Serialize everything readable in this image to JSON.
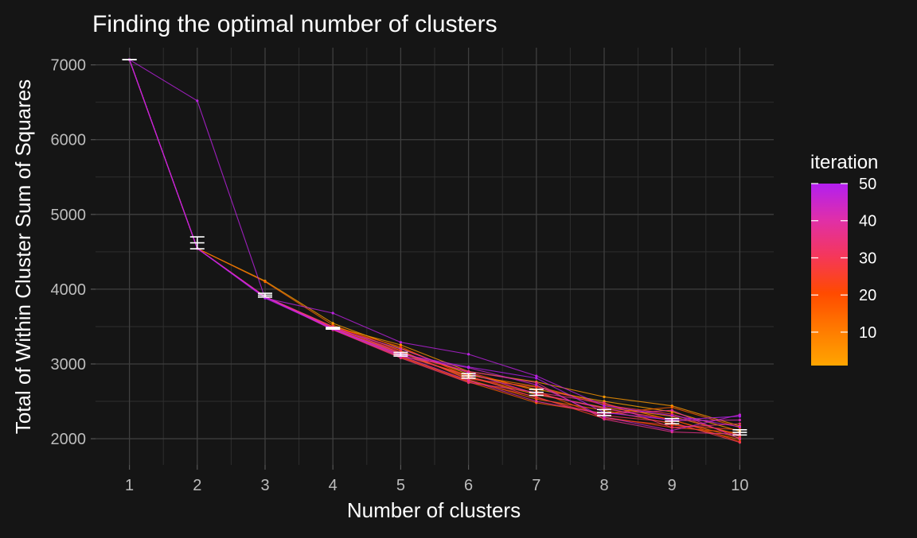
{
  "chart_data": {
    "type": "line",
    "title": "Finding the optimal number of clusters",
    "xlabel": "Number of clusters",
    "ylabel": "Total of Within Cluster Sum of Squares",
    "x": [
      1,
      2,
      3,
      4,
      5,
      6,
      7,
      8,
      9,
      10
    ],
    "xlim": [
      0.5,
      10.5
    ],
    "ylim": [
      1650,
      7230
    ],
    "x_ticks": [
      "1",
      "2",
      "3",
      "4",
      "5",
      "6",
      "7",
      "8",
      "9",
      "10"
    ],
    "y_ticks": [
      2000,
      3000,
      4000,
      5000,
      6000,
      7000
    ],
    "y_tick_labels": [
      "2000",
      "3000",
      "4000",
      "5000",
      "6000",
      "7000"
    ],
    "grid": true,
    "mean_with_error_bars": {
      "mean": [
        7070,
        4620,
        3920,
        3475,
        3130,
        2840,
        2620,
        2350,
        2235,
        2085
      ],
      "lower": [
        7070,
        4540,
        3895,
        3465,
        3105,
        2810,
        2580,
        2310,
        2200,
        2050
      ],
      "upper": [
        7070,
        4700,
        3945,
        3490,
        3155,
        2870,
        2660,
        2390,
        2270,
        2120
      ]
    },
    "series": [
      {
        "iteration": 1,
        "values": [
          7070,
          4545,
          4110,
          3545,
          3210,
          2860,
          2660,
          2500,
          2360,
          2100
        ]
      },
      {
        "iteration": 3,
        "values": [
          7070,
          4545,
          3900,
          3500,
          3255,
          2900,
          2760,
          2560,
          2440,
          2170
        ]
      },
      {
        "iteration": 6,
        "values": [
          7070,
          4545,
          3900,
          3470,
          3150,
          2820,
          2590,
          2420,
          2300,
          2050
        ]
      },
      {
        "iteration": 9,
        "values": [
          7070,
          4545,
          3900,
          3480,
          3120,
          2850,
          2700,
          2470,
          2250,
          2010
        ]
      },
      {
        "iteration": 12,
        "values": [
          7070,
          4545,
          4100,
          3520,
          3180,
          2790,
          2530,
          2380,
          2200,
          1990
        ]
      },
      {
        "iteration": 15,
        "values": [
          7070,
          4545,
          3900,
          3460,
          3100,
          2760,
          2480,
          2340,
          2420,
          2150
        ]
      },
      {
        "iteration": 18,
        "values": [
          7070,
          4545,
          3900,
          3470,
          3140,
          2890,
          2640,
          2290,
          2150,
          2080
        ]
      },
      {
        "iteration": 21,
        "values": [
          7070,
          4545,
          3900,
          3490,
          3230,
          2830,
          2610,
          2400,
          2260,
          1960
        ]
      },
      {
        "iteration": 24,
        "values": [
          7070,
          4545,
          3900,
          3455,
          3090,
          2770,
          2560,
          2270,
          2180,
          2120
        ]
      },
      {
        "iteration": 27,
        "values": [
          7070,
          4545,
          3900,
          3480,
          3170,
          2800,
          2690,
          2450,
          2330,
          2030
        ]
      },
      {
        "iteration": 30,
        "values": [
          7070,
          4545,
          3900,
          3470,
          3120,
          2840,
          2550,
          2310,
          2220,
          1950
        ]
      },
      {
        "iteration": 33,
        "values": [
          7070,
          4545,
          3900,
          3460,
          3080,
          2750,
          2620,
          2480,
          2150,
          2200
        ]
      },
      {
        "iteration": 36,
        "values": [
          7070,
          4545,
          3900,
          3500,
          3150,
          2900,
          2750,
          2260,
          2090,
          2060
        ]
      },
      {
        "iteration": 39,
        "values": [
          7070,
          4545,
          3900,
          3470,
          3110,
          2780,
          2500,
          2330,
          2380,
          2000
        ]
      },
      {
        "iteration": 42,
        "values": [
          7070,
          4545,
          3900,
          3480,
          3200,
          2880,
          2600,
          2410,
          2240,
          2250
        ]
      },
      {
        "iteration": 45,
        "values": [
          7070,
          4545,
          3890,
          3460,
          3100,
          2950,
          2720,
          2290,
          2110,
          2320
        ]
      },
      {
        "iteration": 48,
        "values": [
          7070,
          6520,
          3880,
          3680,
          3290,
          3130,
          2840,
          2440,
          2310,
          2160
        ]
      },
      {
        "iteration": 50,
        "values": [
          7070,
          4545,
          3880,
          3470,
          3130,
          2960,
          2810,
          2350,
          2250,
          2300
        ]
      }
    ],
    "legend": {
      "title": "iteration",
      "placement": "right",
      "labels": [
        "50",
        "40",
        "30",
        "20",
        "10"
      ],
      "ticks": [
        50,
        40,
        30,
        20,
        10
      ],
      "range": [
        1,
        50
      ],
      "colors": [
        "#ffa500",
        "#ff6e00",
        "#ff4500",
        "#f2365c",
        "#e22fae",
        "#b31ff0"
      ]
    }
  }
}
